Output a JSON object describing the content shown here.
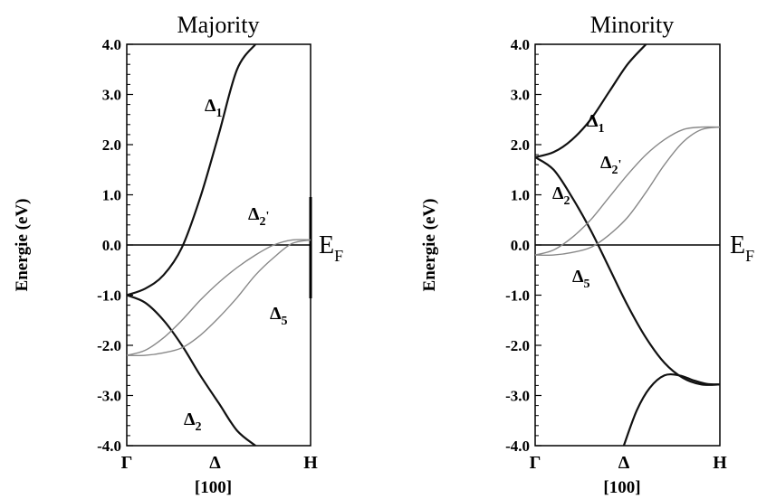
{
  "chart_data": [
    {
      "type": "line",
      "title": "Majority",
      "ylabel": "Energie (eV)",
      "xlabel": "[100]",
      "ylim": [
        -4.0,
        4.0
      ],
      "yticks": [
        "4.0",
        "3.0",
        "2.0",
        "1.0",
        "0.0",
        "-1.0",
        "-2.0",
        "-3.0",
        "-4.0"
      ],
      "xticks": [
        "Γ",
        "Δ",
        "H"
      ],
      "fermi_label_main": "E",
      "fermi_label_sub": "F",
      "series": [
        {
          "label_main": "Δ",
          "label_sub": "1",
          "label_sup": "",
          "color": "#111111",
          "x": [
            0,
            0.1,
            0.2,
            0.3,
            0.4,
            0.5,
            0.6,
            0.7
          ],
          "y": [
            -1.0,
            -0.87,
            -0.6,
            -0.05,
            0.95,
            2.2,
            3.5,
            4.0
          ]
        },
        {
          "label_main": "Δ",
          "label_sub": "2",
          "label_sup": "",
          "color": "#111111",
          "x": [
            0,
            0.1,
            0.2,
            0.3,
            0.4,
            0.5,
            0.6,
            0.7
          ],
          "y": [
            -1.0,
            -1.15,
            -1.5,
            -2.0,
            -2.6,
            -3.15,
            -3.7,
            -4.0
          ]
        },
        {
          "label_main": "Δ",
          "label_sub": "5",
          "label_sup": "",
          "color": "#888888",
          "x": [
            0,
            0.1,
            0.2,
            0.3,
            0.4,
            0.5,
            0.6,
            0.7,
            0.8,
            0.9,
            1.0
          ],
          "y": [
            -2.2,
            -2.1,
            -1.85,
            -1.5,
            -1.1,
            -0.75,
            -0.45,
            -0.2,
            0.0,
            0.1,
            0.1
          ]
        },
        {
          "label_main": "Δ",
          "label_sub": "5",
          "label_sup": "",
          "color": "#888888",
          "x": [
            0,
            0.1,
            0.2,
            0.3,
            0.4,
            0.5,
            0.6,
            0.7,
            0.8,
            0.9,
            1.0
          ],
          "y": [
            -2.2,
            -2.2,
            -2.15,
            -2.05,
            -1.8,
            -1.45,
            -1.05,
            -0.6,
            -0.25,
            0.03,
            0.1
          ]
        }
      ],
      "band_labels": [
        {
          "main": "Δ",
          "sub": "1",
          "sup": ""
        },
        {
          "main": "Δ",
          "sub": "2",
          "sup": "'"
        },
        {
          "main": "Δ",
          "sub": "5",
          "sup": ""
        },
        {
          "main": "Δ",
          "sub": "2",
          "sup": ""
        }
      ]
    },
    {
      "type": "line",
      "title": "Minority",
      "ylabel": "Energie (eV)",
      "xlabel": "[100]",
      "ylim": [
        -4.0,
        4.0
      ],
      "yticks": [
        "4.0",
        "3.0",
        "2.0",
        "1.0",
        "0.0",
        "-1.0",
        "-2.0",
        "-3.0",
        "-4.0"
      ],
      "xticks": [
        "Γ",
        "Δ",
        "H"
      ],
      "fermi_label_main": "E",
      "fermi_label_sub": "F",
      "series": [
        {
          "label_main": "Δ",
          "label_sub": "1",
          "label_sup": "",
          "color": "#111111",
          "x": [
            0,
            0.1,
            0.2,
            0.3,
            0.4,
            0.5,
            0.6
          ],
          "y": [
            1.75,
            1.85,
            2.1,
            2.5,
            3.05,
            3.6,
            4.0
          ]
        },
        {
          "label_main": "Δ",
          "label_sub": "2",
          "label_sup": "",
          "color": "#111111",
          "x": [
            0,
            0.1,
            0.2,
            0.3,
            0.4,
            0.5,
            0.6,
            0.7,
            0.8,
            0.9,
            1.0
          ],
          "y": [
            1.75,
            1.5,
            0.95,
            0.3,
            -0.45,
            -1.2,
            -1.85,
            -2.35,
            -2.65,
            -2.78,
            -2.78
          ]
        },
        {
          "label_main": "Δ",
          "label_sub": "2",
          "label_sup": "'",
          "color": "#888888",
          "x": [
            0,
            0.1,
            0.2,
            0.3,
            0.4,
            0.5,
            0.6,
            0.7,
            0.8,
            0.9,
            1.0
          ],
          "y": [
            -0.2,
            -0.1,
            0.15,
            0.5,
            0.95,
            1.4,
            1.8,
            2.1,
            2.3,
            2.35,
            2.35
          ]
        },
        {
          "label_main": "Δ",
          "label_sub": "5",
          "label_sup": "",
          "color": "#888888",
          "x": [
            0,
            0.1,
            0.2,
            0.3,
            0.4,
            0.5,
            0.6,
            0.7,
            0.8,
            0.9,
            1.0
          ],
          "y": [
            -0.2,
            -0.2,
            -0.15,
            -0.05,
            0.2,
            0.55,
            1.05,
            1.6,
            2.05,
            2.3,
            2.35
          ]
        },
        {
          "label_main": "",
          "label_sub": "",
          "label_sup": "",
          "color": "#111111",
          "x": [
            0.48,
            0.55,
            0.62,
            0.7,
            0.78,
            0.86,
            0.93,
            1.0
          ],
          "y": [
            -4.0,
            -3.3,
            -2.85,
            -2.6,
            -2.6,
            -2.7,
            -2.77,
            -2.78
          ]
        }
      ],
      "band_labels": [
        {
          "main": "Δ",
          "sub": "1",
          "sup": ""
        },
        {
          "main": "Δ",
          "sub": "2",
          "sup": "'"
        },
        {
          "main": "Δ",
          "sub": "2",
          "sup": ""
        },
        {
          "main": "Δ",
          "sub": "5",
          "sup": ""
        }
      ]
    }
  ]
}
